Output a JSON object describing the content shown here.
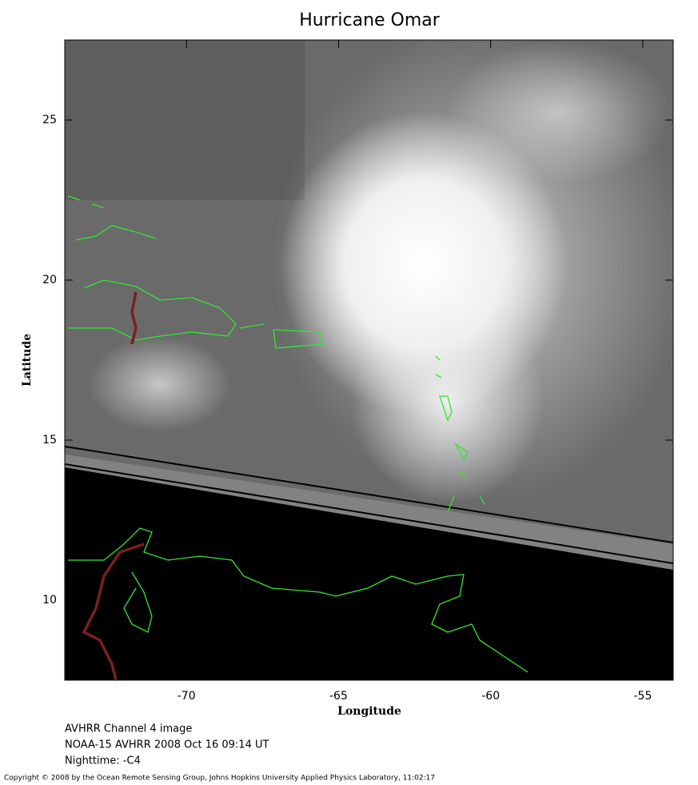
{
  "chart_data": {
    "type": "map",
    "title": "Hurricane Omar",
    "xlabel": "Longitude",
    "ylabel": "Latitude",
    "xlim": [
      -74,
      -54
    ],
    "ylim": [
      7.5,
      27.5
    ],
    "xticks": [
      -70,
      -65,
      -60,
      -55
    ],
    "yticks": [
      10,
      15,
      20,
      25
    ],
    "captions": [
      "AVHRR Channel 4 image",
      "NOAA-15 AVHRR 2008 Oct 16 09:14 UT",
      "Nighttime: -C4"
    ],
    "copyright": "Copyright © 2008 by the Ocean Remote Sensing Group, Johns Hopkins University Applied Physics Laboratory, 11:02:17"
  }
}
